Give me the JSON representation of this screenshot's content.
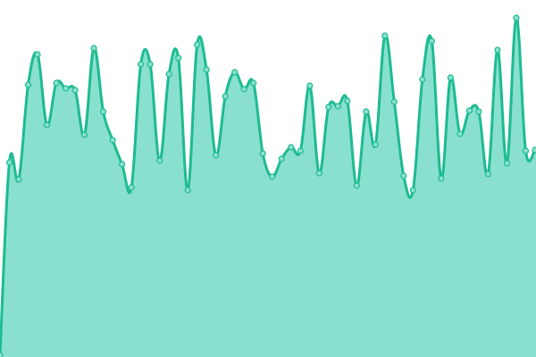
{
  "chart_data": {
    "type": "area",
    "title": "",
    "xlabel": "",
    "ylabel": "",
    "axes_visible": false,
    "grid": false,
    "legend": "none",
    "curve": "smooth",
    "markers": true,
    "ylim": [
      0,
      400
    ],
    "x": [
      0,
      1,
      2,
      3,
      4,
      5,
      6,
      7,
      8,
      9,
      10,
      11,
      12,
      13,
      14,
      15,
      16,
      17,
      18,
      19,
      20,
      21,
      22,
      23,
      24,
      25,
      26,
      27,
      28,
      29,
      30,
      31,
      32,
      33,
      34,
      35,
      36,
      37,
      38,
      39,
      40,
      41,
      42,
      43,
      44,
      45,
      46,
      47,
      48,
      49,
      50,
      51,
      52,
      53,
      54,
      55,
      56,
      57
    ],
    "values": [
      2,
      218,
      199,
      305,
      339,
      260,
      307,
      301,
      299,
      249,
      346,
      275,
      243,
      216,
      190,
      328,
      328,
      220,
      317,
      335,
      187,
      350,
      322,
      226,
      292,
      319,
      300,
      307,
      228,
      202,
      222,
      235,
      231,
      304,
      206,
      280,
      281,
      287,
      192,
      275,
      238,
      360,
      286,
      203,
      187,
      311,
      354,
      200,
      313,
      250,
      276,
      275,
      205,
      344,
      217,
      380,
      231,
      232
    ],
    "colors": {
      "line": "#1dbb90",
      "fill": "#8ae0cf",
      "marker_fill": "#8ae0cf",
      "marker_stroke": "#1dbb90"
    }
  }
}
